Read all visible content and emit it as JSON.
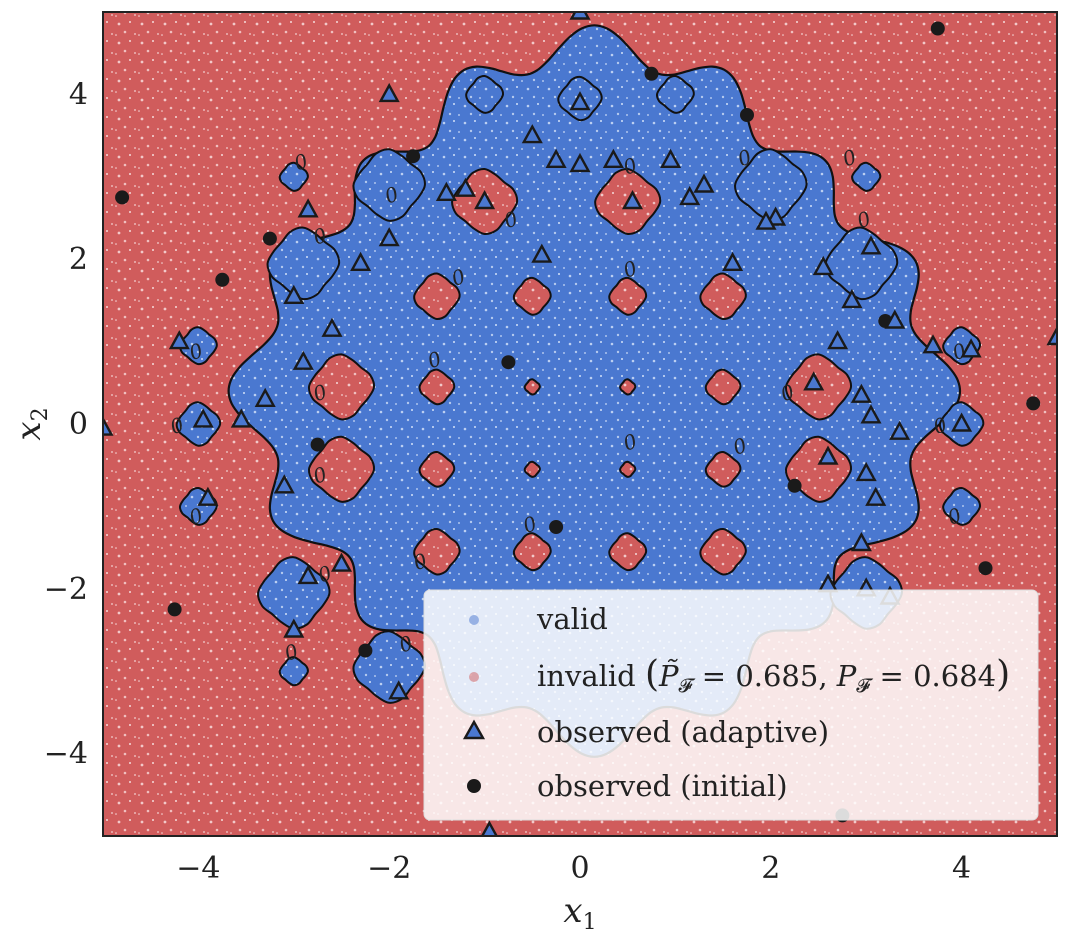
{
  "colors": {
    "valid": "#4a78d0",
    "invalid": "#d05c5c",
    "boundary": "#111111",
    "observed_adaptive_fill": "#4a78d0",
    "observed_adaptive_edge": "#1a1a1a",
    "observed_initial": "#1a1a1a",
    "legend_bg": "#ffffff"
  },
  "chart_data": {
    "type": "scatter",
    "title": "",
    "xlabel": "x1",
    "ylabel": "x2",
    "xlim": [
      -5,
      5
    ],
    "ylim": [
      -5,
      5
    ],
    "xticks": [
      -4,
      -2,
      0,
      2,
      4
    ],
    "yticks": [
      -4,
      -2,
      0,
      2,
      4
    ],
    "xtick_labels": [
      "−4",
      "−2",
      "0",
      "2",
      "4"
    ],
    "ytick_labels": [
      "−4",
      "−2",
      "0",
      "2",
      "4"
    ],
    "grid": false,
    "legend_position": "lower-right",
    "contour_level_label": "0",
    "estimated_probability": 0.685,
    "true_probability": 0.684,
    "series": [
      {
        "name": "valid",
        "kind": "dense-region"
      },
      {
        "name": "invalid (P̃𝓕 = 0.685,  P𝓕 = 0.684)",
        "kind": "dense-region"
      },
      {
        "name": "observed (adaptive)",
        "marker": "triangle",
        "points": [
          [
            0,
            5.0
          ],
          [
            -2.0,
            4.0
          ],
          [
            0.0,
            3.9
          ],
          [
            -0.5,
            3.5
          ],
          [
            -0.25,
            3.2
          ],
          [
            0,
            3.15
          ],
          [
            0.35,
            3.2
          ],
          [
            0.95,
            3.2
          ],
          [
            1.3,
            2.9
          ],
          [
            -1.2,
            2.85
          ],
          [
            -1.4,
            2.8
          ],
          [
            -1.0,
            2.7
          ],
          [
            0.55,
            2.7
          ],
          [
            1.15,
            2.75
          ],
          [
            -2.85,
            2.6
          ],
          [
            2.05,
            2.5
          ],
          [
            1.95,
            2.45
          ],
          [
            -2.0,
            2.25
          ],
          [
            -2.3,
            1.95
          ],
          [
            -0.4,
            2.05
          ],
          [
            1.6,
            1.95
          ],
          [
            2.55,
            1.9
          ],
          [
            3.05,
            2.15
          ],
          [
            -3.0,
            1.55
          ],
          [
            2.85,
            1.5
          ],
          [
            -2.6,
            1.15
          ],
          [
            3.3,
            1.25
          ],
          [
            -4.2,
            1.0
          ],
          [
            2.7,
            1.0
          ],
          [
            3.7,
            0.95
          ],
          [
            4.1,
            0.9
          ],
          [
            -2.9,
            0.75
          ],
          [
            2.45,
            0.5
          ],
          [
            2.95,
            0.35
          ],
          [
            -3.3,
            0.3
          ],
          [
            -3.55,
            0.05
          ],
          [
            -3.95,
            0.05
          ],
          [
            -5.0,
            -0.05
          ],
          [
            3.05,
            0.1
          ],
          [
            3.35,
            -0.1
          ],
          [
            4.0,
            0.0
          ],
          [
            5.0,
            1.05
          ],
          [
            2.6,
            -0.4
          ],
          [
            3.0,
            -0.6
          ],
          [
            -3.1,
            -0.75
          ],
          [
            3.1,
            -0.9
          ],
          [
            -3.9,
            -0.9
          ],
          [
            2.95,
            -1.45
          ],
          [
            -2.5,
            -1.7
          ],
          [
            -2.85,
            -1.85
          ],
          [
            2.6,
            -1.95
          ],
          [
            3.0,
            -2.0
          ],
          [
            3.25,
            -2.1
          ],
          [
            -3.0,
            -2.5
          ],
          [
            -1.9,
            -3.25
          ],
          [
            -0.95,
            -4.95
          ]
        ]
      },
      {
        "name": "observed (initial)",
        "marker": "circle",
        "points": [
          [
            3.75,
            4.8
          ],
          [
            0.75,
            4.25
          ],
          [
            1.75,
            3.75
          ],
          [
            -1.75,
            3.25
          ],
          [
            -4.8,
            2.75
          ],
          [
            -3.25,
            2.25
          ],
          [
            -3.75,
            1.75
          ],
          [
            3.2,
            1.25
          ],
          [
            -0.75,
            0.75
          ],
          [
            4.75,
            0.25
          ],
          [
            -2.75,
            -0.25
          ],
          [
            2.25,
            -0.75
          ],
          [
            -0.25,
            -1.25
          ],
          [
            4.25,
            -1.75
          ],
          [
            -4.25,
            -2.25
          ],
          [
            -2.25,
            -2.75
          ],
          [
            2.75,
            -4.75
          ]
        ]
      }
    ]
  },
  "legend": {
    "items": [
      {
        "label": "valid"
      },
      {
        "label_prefix": "invalid ",
        "p_tilde": "0.685",
        "p_true": "0.684"
      },
      {
        "label": "observed (adaptive)"
      },
      {
        "label": "observed (initial)"
      }
    ]
  }
}
